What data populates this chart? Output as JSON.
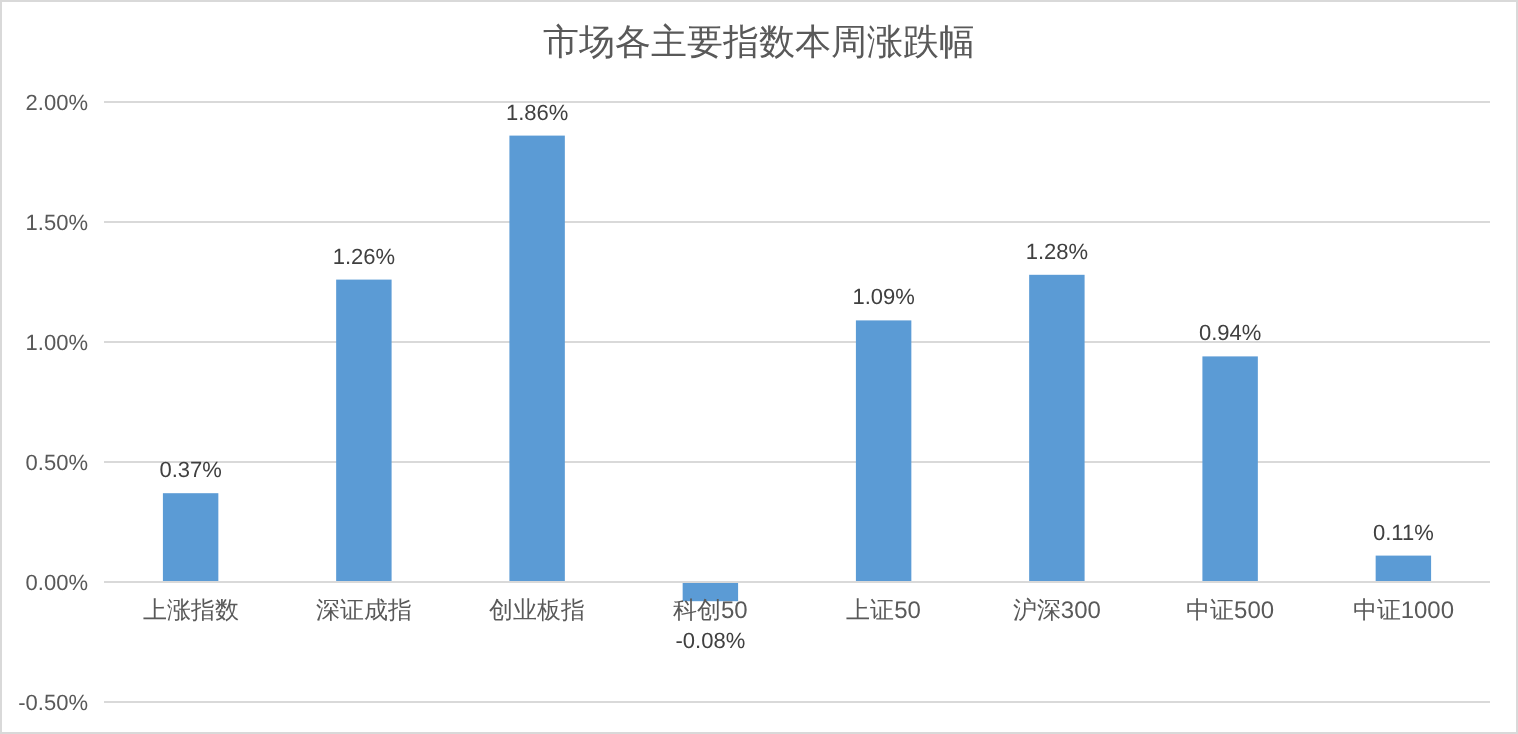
{
  "chart_data": {
    "type": "bar",
    "title": "市场各主要指数本周涨跌幅",
    "categories": [
      "上涨指数",
      "深证成指",
      "创业板指",
      "科创50",
      "上证50",
      "沪深300",
      "中证500",
      "中证1000"
    ],
    "values": [
      0.37,
      1.26,
      1.86,
      -0.08,
      1.09,
      1.28,
      0.94,
      0.11
    ],
    "value_labels": [
      "0.37%",
      "1.26%",
      "1.86%",
      "-0.08%",
      "1.09%",
      "1.28%",
      "0.94%",
      "0.11%"
    ],
    "color": "#5b9bd5",
    "ylim": [
      -0.5,
      2
    ],
    "yticks": [
      {
        "value": -0.5,
        "label": "-0.50%"
      },
      {
        "value": 0,
        "label": "0.00%"
      },
      {
        "value": 0.5,
        "label": "0.50%"
      },
      {
        "value": 1,
        "label": "1.00%"
      },
      {
        "value": 1.5,
        "label": "1.50%"
      },
      {
        "value": 2,
        "label": "2.00%"
      }
    ],
    "grid": "y"
  }
}
